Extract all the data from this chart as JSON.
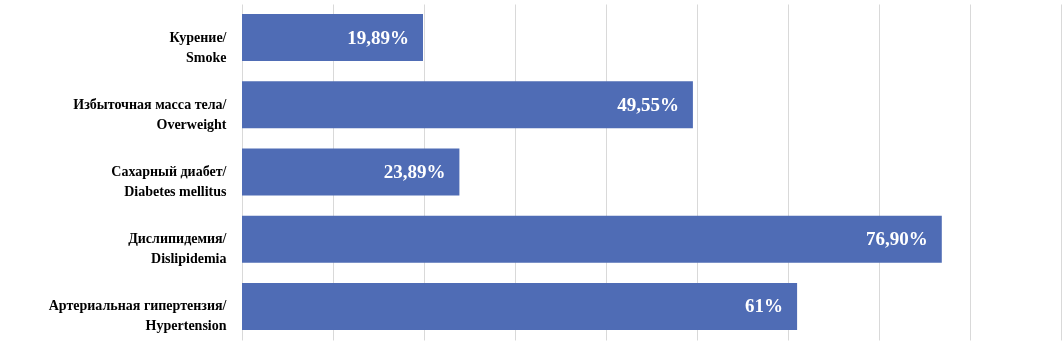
{
  "chart_data": {
    "type": "bar",
    "orientation": "horizontal",
    "categories": [
      "Курение/ Smoke",
      "Избыточная масса тела/ Overweight",
      "Сахарный диабет/ Diabetes mellitus",
      "Дислипидемия/ Dislipidemia",
      "Артериальная гипертензия/ Hypertension"
    ],
    "values": [
      19.89,
      49.55,
      23.89,
      76.9,
      61
    ],
    "value_labels": [
      "19,89%",
      "49,55%",
      "23,89%",
      "76,90%",
      "61%"
    ],
    "color": "#4f6cb5",
    "xlim": [
      0,
      90
    ],
    "xticks": [
      {
        "value": 0,
        "label": null
      },
      {
        "value": 10,
        "label": null
      },
      {
        "value": 20,
        "label": null
      },
      {
        "value": 30,
        "label": null
      },
      {
        "value": 40,
        "label": null
      },
      {
        "value": 50,
        "label": null
      },
      {
        "value": 60,
        "label": null
      },
      {
        "value": 70,
        "label": null
      },
      {
        "value": 80,
        "label": null
      },
      {
        "value": 90,
        "label": null
      }
    ],
    "grid": "x",
    "tick_labels": "y"
  }
}
